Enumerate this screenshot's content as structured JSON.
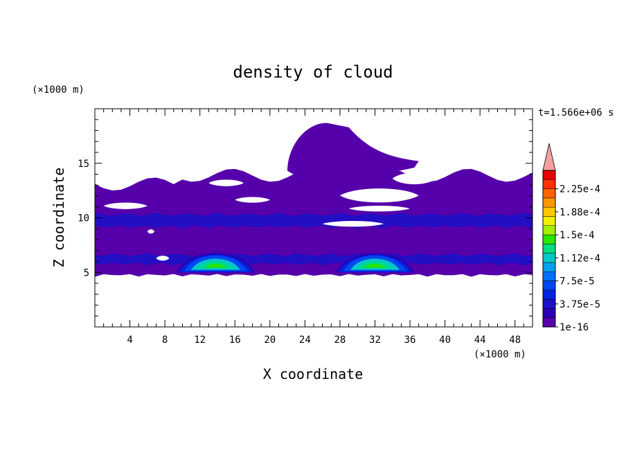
{
  "chart_data": {
    "type": "heatmap",
    "title": "density of cloud",
    "xlabel": "X coordinate",
    "ylabel": "Z coordinate",
    "x_unit": "(×1000 m)",
    "y_unit": "(×1000 m)",
    "time_label": "t=1.566e+06 s",
    "xlim": [
      0,
      50
    ],
    "ylim": [
      0,
      20
    ],
    "x_ticks": [
      4,
      8,
      12,
      16,
      20,
      24,
      28,
      32,
      36,
      40,
      44,
      48
    ],
    "y_ticks": [
      5,
      10,
      15
    ],
    "colorbar": {
      "colors": [
        "#5500aa",
        "#2a00b4",
        "#1a10c8",
        "#0022e0",
        "#0048f0",
        "#0070f8",
        "#00a0f0",
        "#00c8c8",
        "#00dc82",
        "#28e600",
        "#a0f000",
        "#f0f000",
        "#ffc800",
        "#ff9600",
        "#ff6400",
        "#ff3200",
        "#e60000"
      ],
      "extend_color": "#f4a0a0",
      "labels": [
        "1e-16",
        "3.75e-5",
        "7.5e-5",
        "1.12e-4",
        "1.5e-4",
        "1.88e-4",
        "2.25e-4"
      ]
    },
    "cloud_layer": {
      "z_bottom": 4.6,
      "z_top": 14.8,
      "value": 1e-16
    },
    "upper_cloud": {
      "x_range": [
        22,
        37
      ],
      "z_range": [
        12.2,
        18.7
      ],
      "value": 1e-16
    },
    "clear_gaps": [
      {
        "x": [
          1,
          6
        ],
        "z": [
          10.7,
          11.5
        ]
      },
      {
        "x": [
          13,
          17
        ],
        "z": [
          12.8,
          13.6
        ]
      },
      {
        "x": [
          16,
          20
        ],
        "z": [
          11.3,
          12.0
        ]
      },
      {
        "x": [
          26,
          33
        ],
        "z": [
          9.1,
          9.8
        ]
      },
      {
        "x": [
          29,
          36
        ],
        "z": [
          10.5,
          11.2
        ]
      },
      {
        "x": [
          28,
          37
        ],
        "z": [
          11.2,
          12.9
        ]
      },
      {
        "x": [
          34,
          39
        ],
        "z": [
          12.9,
          14.3
        ]
      },
      {
        "x": [
          6,
          6.8
        ],
        "z": [
          8.5,
          9.0
        ]
      },
      {
        "x": [
          7,
          8.5
        ],
        "z": [
          6.0,
          6.6
        ]
      }
    ],
    "bands": [
      {
        "x": [
          0,
          50
        ],
        "z": [
          9.0,
          10.5
        ],
        "value": 3.75e-05
      },
      {
        "x": [
          0,
          50
        ],
        "z": [
          5.6,
          6.8
        ],
        "value": 3.75e-05
      }
    ],
    "cores": [
      {
        "x_center": 13.8,
        "half_width": 4.5,
        "z_base": 5.0,
        "z_top": 7.0,
        "value": 0.00015
      },
      {
        "x_center": 32.0,
        "half_width": 4.5,
        "z_base": 5.0,
        "z_top": 7.0,
        "value": 0.00015
      }
    ]
  }
}
